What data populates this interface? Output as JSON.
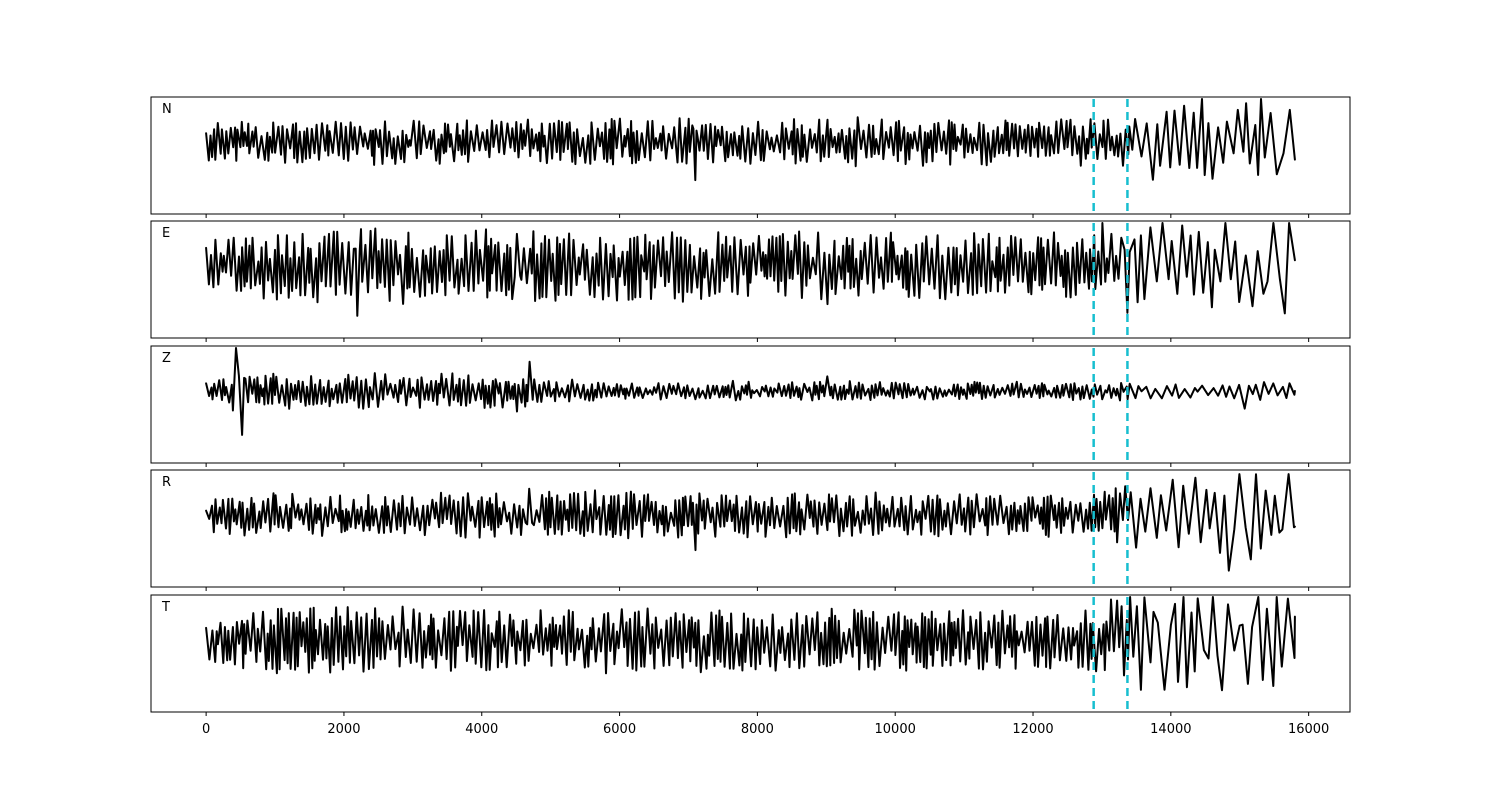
{
  "chart_data": {
    "type": "line",
    "title": "",
    "xlabel": "",
    "ylabel": "",
    "xlim": [
      -800,
      16600
    ],
    "x_ticks": [
      0,
      2000,
      4000,
      6000,
      8000,
      10000,
      12000,
      14000,
      16000
    ],
    "x_tick_labels": [
      "0",
      "2000",
      "4000",
      "6000",
      "8000",
      "10000",
      "12000",
      "14000",
      "16000"
    ],
    "sample_count": 15800,
    "grid": false,
    "colors": {
      "trace": "#000000",
      "marker": "#17becf"
    },
    "markers": [
      12880,
      13370
    ],
    "panels": [
      {
        "label": "N",
        "envelope": [
          [
            0,
            0.35
          ],
          [
            3000,
            0.38
          ],
          [
            7000,
            0.4
          ],
          [
            12800,
            0.4
          ],
          [
            13400,
            0.55
          ],
          [
            14000,
            0.75
          ],
          [
            15800,
            0.9
          ]
        ],
        "spikes": [
          [
            7100,
            -0.65
          ],
          [
            14880,
            -1.0
          ],
          [
            14960,
            0.55
          ],
          [
            15740,
            0.55
          ]
        ],
        "end_value": -0.3
      },
      {
        "label": "E",
        "envelope": [
          [
            0,
            0.45
          ],
          [
            1500,
            0.65
          ],
          [
            5000,
            0.6
          ],
          [
            12800,
            0.55
          ],
          [
            13400,
            0.75
          ],
          [
            15800,
            0.85
          ]
        ],
        "spikes": [
          [
            2200,
            -0.85
          ],
          [
            4500,
            0.55
          ],
          [
            9000,
            -0.65
          ],
          [
            13000,
            0.9
          ],
          [
            13370,
            -0.8
          ],
          [
            13900,
            0.75
          ],
          [
            14720,
            -0.8
          ],
          [
            14820,
            0.75
          ],
          [
            15500,
            0.75
          ]
        ],
        "end_value": 0.1
      },
      {
        "label": "Z",
        "envelope": [
          [
            0,
            0.18
          ],
          [
            1000,
            0.3
          ],
          [
            4500,
            0.3
          ],
          [
            5500,
            0.15
          ],
          [
            12800,
            0.15
          ],
          [
            15800,
            0.15
          ]
        ],
        "spikes": [
          [
            440,
            0.95
          ],
          [
            520,
            -0.75
          ],
          [
            4680,
            0.5
          ],
          [
            4500,
            -0.35
          ],
          [
            9000,
            0.25
          ],
          [
            15100,
            -0.3
          ]
        ],
        "end_value": 0.0
      },
      {
        "label": "R",
        "envelope": [
          [
            0,
            0.35
          ],
          [
            4000,
            0.4
          ],
          [
            7000,
            0.4
          ],
          [
            12800,
            0.35
          ],
          [
            13400,
            0.55
          ],
          [
            15800,
            0.85
          ]
        ],
        "spikes": [
          [
            4680,
            0.45
          ],
          [
            7100,
            -0.6
          ],
          [
            14880,
            -0.95
          ],
          [
            14960,
            0.7
          ],
          [
            15740,
            0.7
          ]
        ],
        "end_value": -0.2
      },
      {
        "label": "T",
        "envelope": [
          [
            0,
            0.4
          ],
          [
            1000,
            0.6
          ],
          [
            5000,
            0.55
          ],
          [
            12800,
            0.5
          ],
          [
            13400,
            0.85
          ],
          [
            15800,
            0.85
          ]
        ],
        "spikes": [
          [
            13400,
            0.95
          ],
          [
            13880,
            -0.85
          ],
          [
            14630,
            0.9
          ],
          [
            15120,
            -0.75
          ]
        ],
        "end_value": 0.4
      }
    ]
  }
}
